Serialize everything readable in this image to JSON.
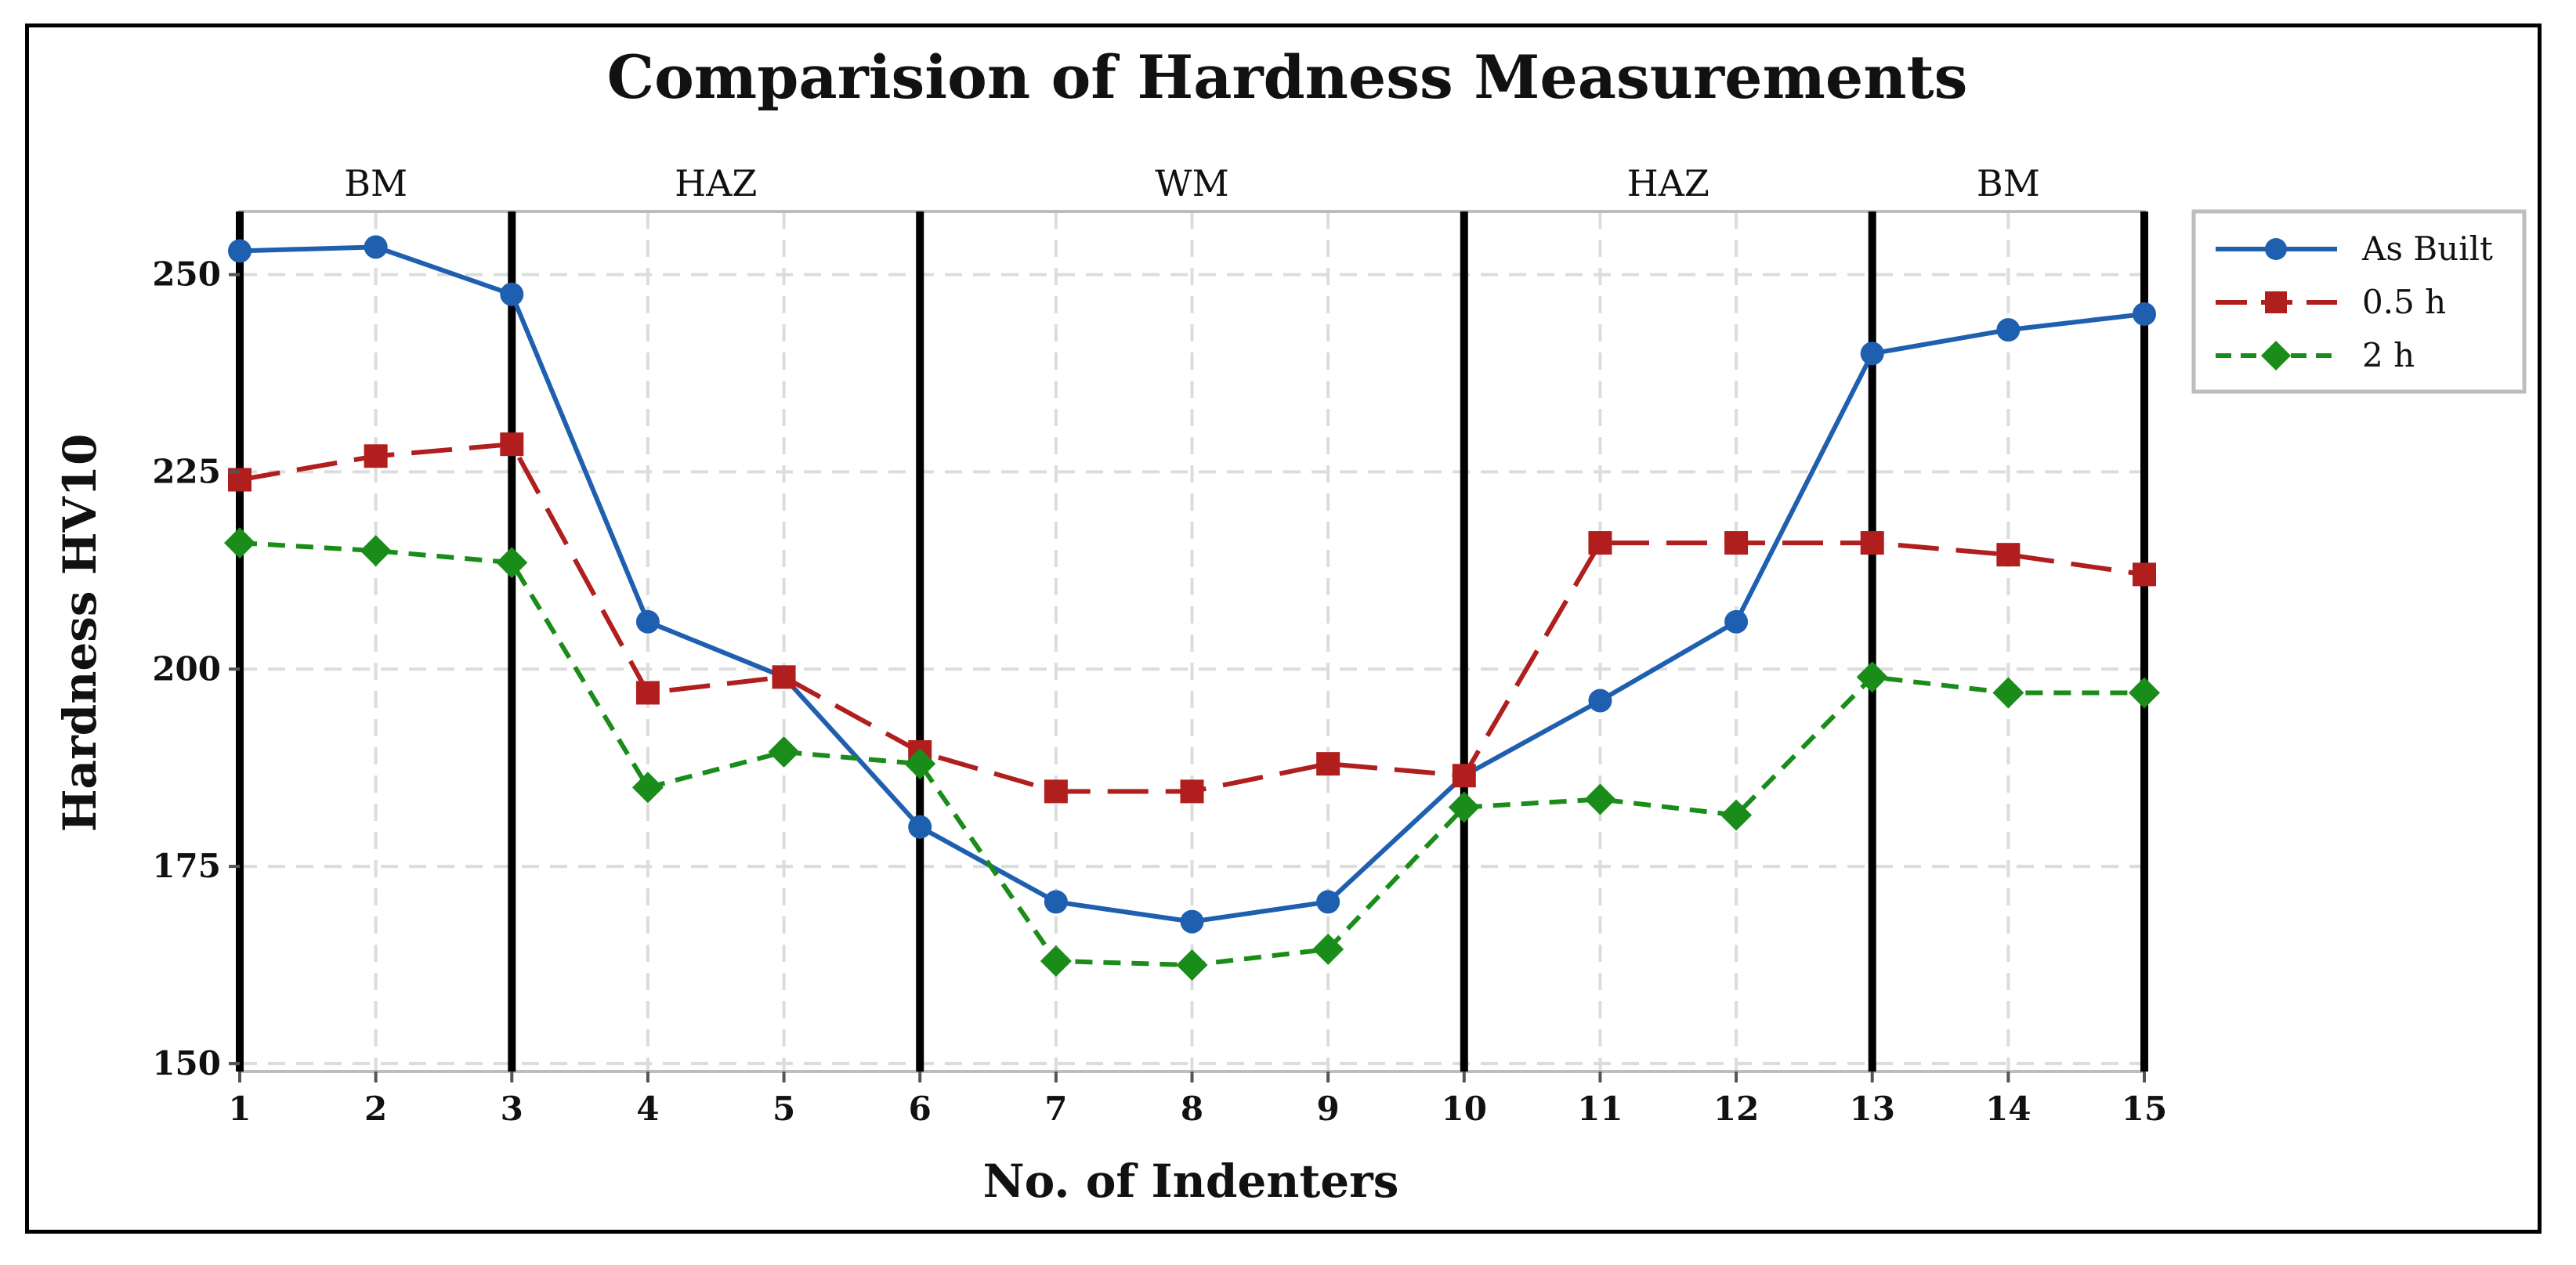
{
  "chart_data": {
    "type": "line",
    "title": "Comparision of Hardness Measurements",
    "xlabel": "No. of Indenters",
    "ylabel": "Hardness HV10",
    "x": [
      1,
      2,
      3,
      4,
      5,
      6,
      7,
      8,
      9,
      10,
      11,
      12,
      13,
      14,
      15
    ],
    "xlim": [
      1,
      15
    ],
    "ylim": [
      149,
      258
    ],
    "yticks": [
      150,
      175,
      200,
      225,
      250
    ],
    "grid": true,
    "legend_position": "right",
    "region_boundaries": [
      1,
      3,
      6,
      10,
      13,
      15
    ],
    "regions": [
      {
        "label": "BM",
        "center": 2
      },
      {
        "label": "HAZ",
        "center": 4.5
      },
      {
        "label": "WM",
        "center": 8
      },
      {
        "label": "HAZ",
        "center": 11.5
      },
      {
        "label": "BM",
        "center": 14
      }
    ],
    "series": [
      {
        "name": "As Built",
        "color": "#1f5fb0",
        "marker": "circle",
        "dash": "solid",
        "values": [
          253,
          253.5,
          247.5,
          206,
          199,
          180,
          170.5,
          168,
          170.5,
          186.5,
          196,
          206,
          240,
          243,
          245
        ]
      },
      {
        "name": "0.5 h",
        "color": "#b01e1e",
        "marker": "square",
        "dash": "long-dash",
        "values": [
          224,
          227,
          228.5,
          197,
          199,
          189.5,
          184.5,
          184.5,
          188,
          186.5,
          216,
          216,
          216,
          214.5,
          212
        ]
      },
      {
        "name": "2 h",
        "color": "#1a8c1a",
        "marker": "diamond",
        "dash": "short-dash",
        "values": [
          216,
          215,
          213.5,
          185,
          189.5,
          188,
          163,
          162.5,
          164.5,
          182.5,
          183.5,
          181.5,
          199,
          197,
          197
        ]
      }
    ]
  }
}
